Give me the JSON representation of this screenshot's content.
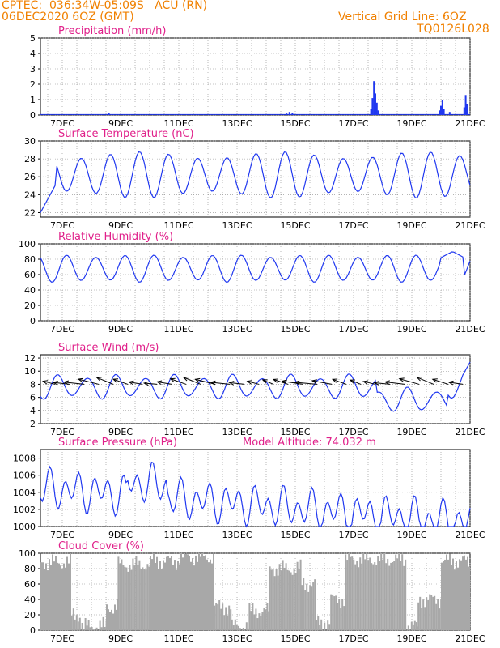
{
  "header": {
    "station_line": "CPTEC:  036:34W-05:09S   ACU (RN)",
    "date_line": "06DEC2020 6OZ (GMT)",
    "grid_note": "Vertical Grid Line: 6OZ",
    "model_code": "TQ0126L028"
  },
  "colors": {
    "header_text": "#f08000",
    "panel_title": "#e0208a",
    "series_line": "#2038f0",
    "cloud_fill": "#a8a8a8",
    "wind_arrow": "#000000"
  },
  "chart_data": [
    {
      "type": "bar",
      "title": "Precipitation (mm/h)",
      "x_ticks": [
        "7DEC",
        "9DEC",
        "11DEC",
        "13DEC",
        "15DEC",
        "17DEC",
        "19DEC",
        "21DEC"
      ],
      "xlim_days": [
        6.25,
        21.0
      ],
      "ylim": [
        0,
        5
      ],
      "y_ticks": [
        0,
        1,
        2,
        3,
        4,
        5
      ],
      "grid": true,
      "events": [
        {
          "day": 8.6,
          "value": 0.15
        },
        {
          "day": 14.7,
          "value": 0.1
        },
        {
          "day": 14.8,
          "value": 0.2
        },
        {
          "day": 14.9,
          "value": 0.12
        },
        {
          "day": 17.6,
          "value": 0.4
        },
        {
          "day": 17.65,
          "value": 1.1
        },
        {
          "day": 17.7,
          "value": 2.2
        },
        {
          "day": 17.75,
          "value": 1.4
        },
        {
          "day": 17.8,
          "value": 0.8
        },
        {
          "day": 17.85,
          "value": 0.3
        },
        {
          "day": 19.95,
          "value": 0.3
        },
        {
          "day": 20.0,
          "value": 0.6
        },
        {
          "day": 20.05,
          "value": 1.0
        },
        {
          "day": 20.1,
          "value": 0.4
        },
        {
          "day": 20.3,
          "value": 0.2
        },
        {
          "day": 20.8,
          "value": 0.5
        },
        {
          "day": 20.85,
          "value": 1.3
        },
        {
          "day": 20.9,
          "value": 0.7
        }
      ]
    },
    {
      "type": "line",
      "title": "Surface Temperature (nC)",
      "x_ticks": [
        "7DEC",
        "9DEC",
        "11DEC",
        "13DEC",
        "15DEC",
        "17DEC",
        "19DEC",
        "21DEC"
      ],
      "xlim_days": [
        6.25,
        21.0
      ],
      "ylim": [
        21.5,
        30
      ],
      "y_ticks": [
        22,
        24,
        26,
        28,
        30
      ],
      "grid": true,
      "model": {
        "mean": 26.2,
        "amplitude": 2.6,
        "peak_phase": 0.65,
        "start_min": 22.0,
        "start_end_day": 6.45
      }
    },
    {
      "type": "line",
      "title": "Relative Humidity (%)",
      "x_ticks": [
        "7DEC",
        "9DEC",
        "11DEC",
        "13DEC",
        "15DEC",
        "17DEC",
        "19DEC",
        "21DEC"
      ],
      "xlim_days": [
        6.25,
        21.0
      ],
      "ylim": [
        0,
        100
      ],
      "y_ticks": [
        0,
        20,
        40,
        60,
        80,
        100
      ],
      "grid": true,
      "model": {
        "mean": 68,
        "amplitude": 18,
        "peak_phase": 0.15,
        "late_bump_day": 20.4,
        "late_bump_value": 90
      }
    },
    {
      "type": "line",
      "title": "Surface Wind (m/s)",
      "x_ticks": [
        "7DEC",
        "9DEC",
        "11DEC",
        "13DEC",
        "15DEC",
        "17DEC",
        "19DEC",
        "21DEC"
      ],
      "xlim_days": [
        6.25,
        21.0
      ],
      "ylim": [
        2,
        12.5
      ],
      "y_ticks": [
        2,
        4,
        6,
        8,
        10,
        12
      ],
      "grid": true,
      "arrows": {
        "every_days": 0.5,
        "direction": "from-southeast",
        "length_scale": 1.0
      },
      "model": {
        "mean": 7.6,
        "amplitude": 2.0,
        "peak_phase": 0.85,
        "late_drop_day": 18.6,
        "late_drop_value": 4.5,
        "end_value": 11.4
      }
    },
    {
      "type": "line",
      "title": "Surface Pressure (hPa)",
      "annotation": "Model Altitude: 74.032 m",
      "x_ticks": [
        "7DEC",
        "9DEC",
        "11DEC",
        "13DEC",
        "15DEC",
        "17DEC",
        "19DEC",
        "21DEC"
      ],
      "xlim_days": [
        6.25,
        21.0
      ],
      "ylim": [
        1000,
        1009
      ],
      "y_ticks": [
        1000,
        1002,
        1004,
        1006,
        1008
      ],
      "grid": true,
      "model": {
        "trend_start": 1004.5,
        "trend_end": 1000.5,
        "amplitude": 1.7,
        "semi_amp": 1.0
      }
    },
    {
      "type": "area",
      "title": "Cloud Cover (%)",
      "x_ticks": [
        "7DEC",
        "9DEC",
        "11DEC",
        "13DEC",
        "15DEC",
        "17DEC",
        "19DEC",
        "21DEC"
      ],
      "xlim_days": [
        6.25,
        21.0
      ],
      "ylim": [
        0,
        100
      ],
      "y_ticks": [
        0,
        20,
        40,
        60,
        80,
        100
      ],
      "grid": true,
      "segments": [
        {
          "from": 6.25,
          "to": 7.3,
          "value": 88
        },
        {
          "from": 7.3,
          "to": 7.6,
          "value": 20
        },
        {
          "from": 7.6,
          "to": 8.5,
          "value": 5
        },
        {
          "from": 8.5,
          "to": 8.9,
          "value": 30
        },
        {
          "from": 8.9,
          "to": 10.0,
          "value": 85
        },
        {
          "from": 10.0,
          "to": 11.0,
          "value": 90
        },
        {
          "from": 11.0,
          "to": 12.2,
          "value": 95
        },
        {
          "from": 12.2,
          "to": 12.8,
          "value": 30
        },
        {
          "from": 12.8,
          "to": 13.4,
          "value": 5
        },
        {
          "from": 13.4,
          "to": 14.1,
          "value": 25
        },
        {
          "from": 14.1,
          "to": 15.2,
          "value": 80
        },
        {
          "from": 15.2,
          "to": 15.7,
          "value": 60
        },
        {
          "from": 15.7,
          "to": 16.2,
          "value": 10
        },
        {
          "from": 16.2,
          "to": 16.7,
          "value": 40
        },
        {
          "from": 16.7,
          "to": 18.8,
          "value": 92
        },
        {
          "from": 18.8,
          "to": 19.2,
          "value": 5
        },
        {
          "from": 19.2,
          "to": 20.0,
          "value": 40
        },
        {
          "from": 20.0,
          "to": 21.0,
          "value": 90
        }
      ]
    }
  ]
}
